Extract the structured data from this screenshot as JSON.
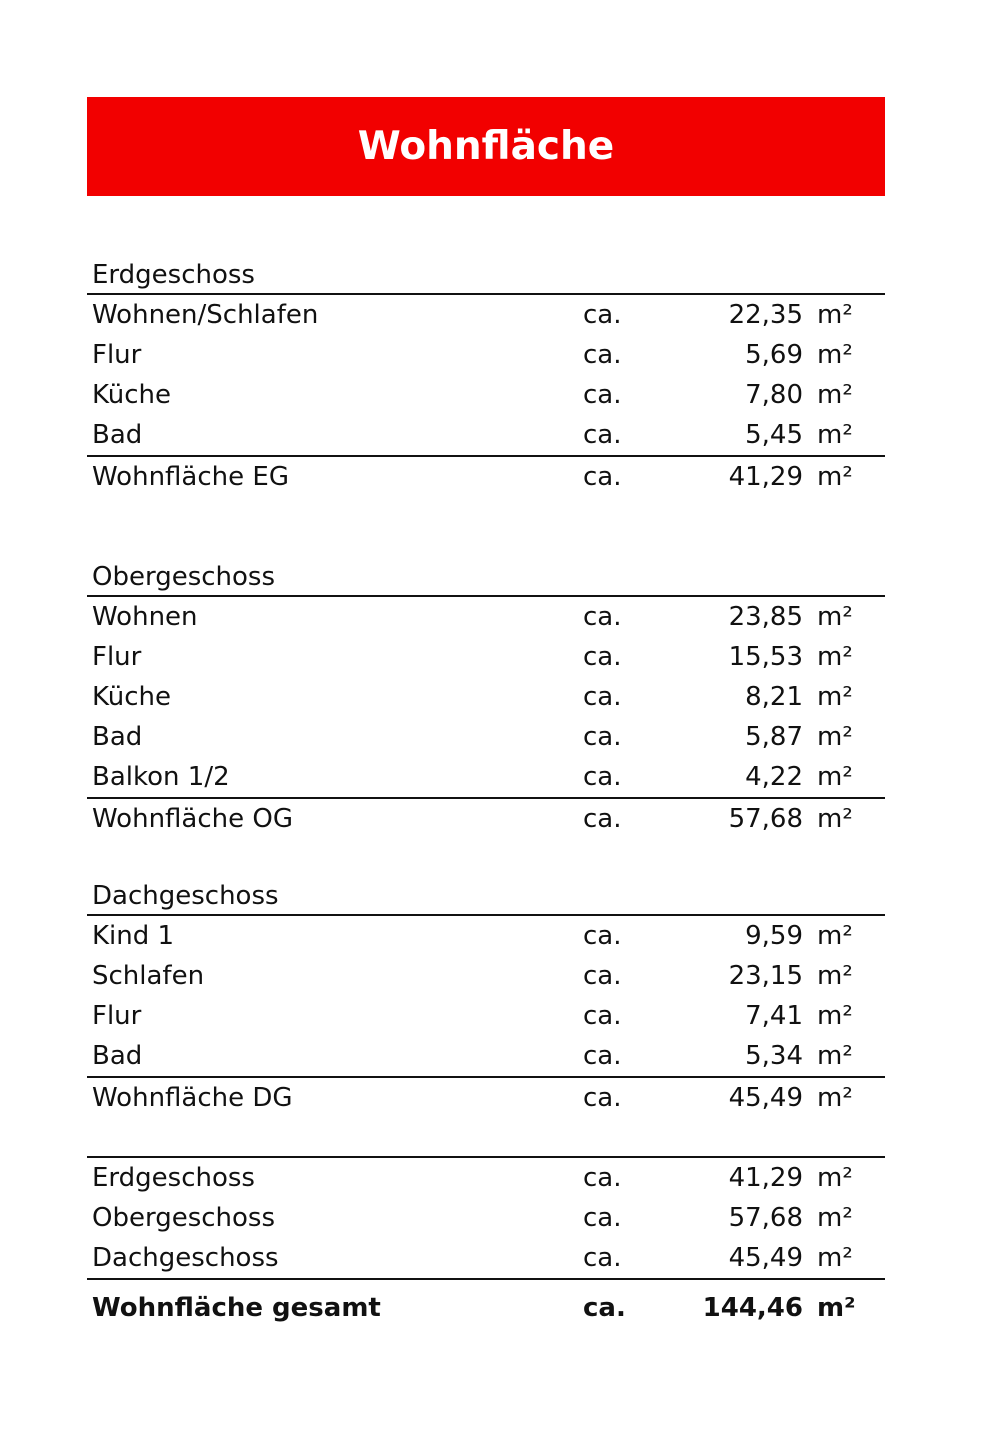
{
  "title": "Wohnfläche",
  "accent_color": "#f20000",
  "sections": [
    {
      "title": "Erdgeschoss",
      "items": [
        {
          "label": "Wohnen/Schlafen",
          "prefix": "ca.",
          "value": "22,35",
          "unit": "m²"
        },
        {
          "label": "Flur",
          "prefix": "ca.",
          "value": "5,69",
          "unit": "m²"
        },
        {
          "label": "Küche",
          "prefix": "ca.",
          "value": "7,80",
          "unit": "m²"
        },
        {
          "label": "Bad",
          "prefix": "ca.",
          "value": "5,45",
          "unit": "m²"
        }
      ],
      "subtotal": {
        "label": "Wohnfläche EG",
        "prefix": "ca.",
        "value": "41,29",
        "unit": "m²"
      }
    },
    {
      "title": "Obergeschoss",
      "items": [
        {
          "label": "Wohnen",
          "prefix": "ca.",
          "value": "23,85",
          "unit": "m²"
        },
        {
          "label": "Flur",
          "prefix": "ca.",
          "value": "15,53",
          "unit": "m²"
        },
        {
          "label": "Küche",
          "prefix": "ca.",
          "value": "8,21",
          "unit": "m²"
        },
        {
          "label": "Bad",
          "prefix": "ca.",
          "value": "5,87",
          "unit": "m²"
        },
        {
          "label": "Balkon 1/2",
          "prefix": "ca.",
          "value": "4,22",
          "unit": "m²"
        }
      ],
      "subtotal": {
        "label": "Wohnfläche OG",
        "prefix": "ca.",
        "value": "57,68",
        "unit": "m²"
      }
    },
    {
      "title": "Dachgeschoss",
      "items": [
        {
          "label": "Kind 1",
          "prefix": "ca.",
          "value": "9,59",
          "unit": "m²"
        },
        {
          "label": "Schlafen",
          "prefix": "ca.",
          "value": "23,15",
          "unit": "m²"
        },
        {
          "label": "Flur",
          "prefix": "ca.",
          "value": "7,41",
          "unit": "m²"
        },
        {
          "label": "Bad",
          "prefix": "ca.",
          "value": "5,34",
          "unit": "m²"
        }
      ],
      "subtotal": {
        "label": "Wohnfläche DG",
        "prefix": "ca.",
        "value": "45,49",
        "unit": "m²"
      }
    }
  ],
  "summary": {
    "items": [
      {
        "label": "Erdgeschoss",
        "prefix": "ca.",
        "value": "41,29",
        "unit": "m²"
      },
      {
        "label": "Obergeschoss",
        "prefix": "ca.",
        "value": "57,68",
        "unit": "m²"
      },
      {
        "label": "Dachgeschoss",
        "prefix": "ca.",
        "value": "45,49",
        "unit": "m²"
      }
    ],
    "total": {
      "label": "Wohnfläche gesamt",
      "prefix": "ca.",
      "value": "144,46",
      "unit": "m²"
    }
  }
}
